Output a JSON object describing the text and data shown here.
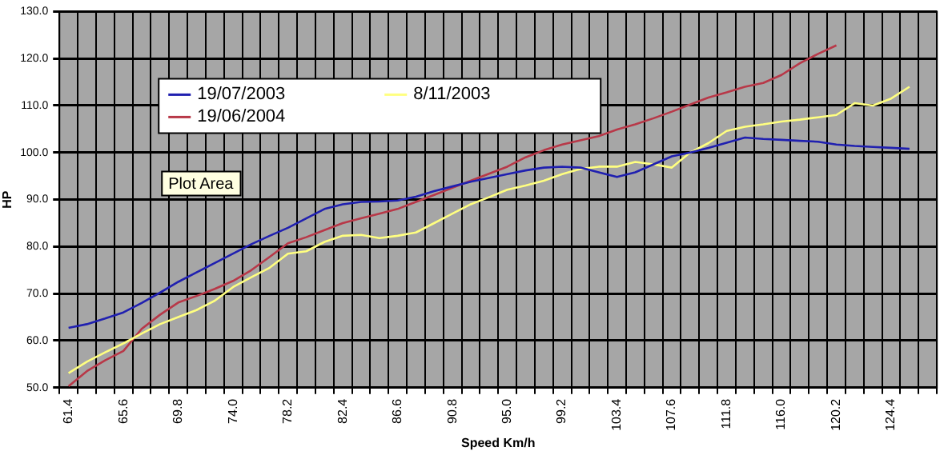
{
  "chart_data": {
    "type": "line",
    "xlabel": "Speed Km/h",
    "ylabel": "HP",
    "categories": [
      "61.4",
      null,
      null,
      "65.6",
      null,
      null,
      "69.8",
      null,
      null,
      "74.0",
      null,
      null,
      "78.2",
      null,
      null,
      "82.4",
      null,
      null,
      "86.6",
      null,
      null,
      "90.8",
      null,
      null,
      "95.0",
      null,
      null,
      "99.2",
      null,
      null,
      "103.4",
      null,
      null,
      "107.6",
      null,
      null,
      "111.8",
      null,
      null,
      "116.0",
      null,
      null,
      "120.2",
      null,
      null,
      "124.4",
      null,
      null
    ],
    "series": [
      {
        "name": "19/07/2003",
        "color": "#2020b0",
        "values": [
          62.7,
          63.5,
          64.7,
          66.0,
          68.0,
          70.2,
          72.5,
          74.5,
          76.5,
          78.5,
          80.5,
          82.3,
          84.0,
          86.0,
          88.0,
          89.0,
          89.5,
          89.6,
          89.8,
          90.6,
          91.8,
          92.8,
          93.8,
          94.6,
          95.4,
          96.2,
          96.8,
          97.0,
          96.8,
          95.8,
          94.8,
          95.8,
          97.5,
          99.2,
          100.0,
          101.0,
          102.1,
          103.2,
          102.9,
          102.7,
          102.5,
          102.3,
          101.7,
          101.4,
          101.2,
          101.0,
          100.8,
          null
        ]
      },
      {
        "name": "8/11/2003",
        "color": "#ffff80",
        "values": [
          53.1,
          55.5,
          57.5,
          59.4,
          61.5,
          63.5,
          65.0,
          66.5,
          68.5,
          71.4,
          73.5,
          75.5,
          78.5,
          79.0,
          81.0,
          82.3,
          82.5,
          81.8,
          82.3,
          83.0,
          85.0,
          87.0,
          89.0,
          90.5,
          92.1,
          93.0,
          94.0,
          95.4,
          96.5,
          97.0,
          97.0,
          98.0,
          97.5,
          96.8,
          100.0,
          102.0,
          104.6,
          105.5,
          106.0,
          106.6,
          107.0,
          107.5,
          108.0,
          110.5,
          110.0,
          111.5,
          114.0,
          null
        ]
      },
      {
        "name": "19/06/2004",
        "color": "#b83848",
        "values": [
          50.3,
          53.5,
          55.8,
          57.8,
          62.5,
          65.5,
          68.1,
          69.5,
          71.0,
          72.7,
          75.0,
          77.8,
          80.7,
          82.0,
          83.5,
          85.0,
          86.0,
          87.0,
          88.0,
          89.5,
          91.0,
          92.5,
          94.0,
          95.5,
          97.0,
          99.0,
          100.5,
          101.7,
          102.6,
          103.5,
          104.9,
          106.0,
          107.3,
          108.7,
          110.2,
          111.7,
          112.8,
          114.0,
          114.8,
          116.5,
          119.0,
          121.0,
          122.8,
          null,
          null,
          null,
          null,
          null
        ]
      }
    ],
    "ylim": [
      50,
      130
    ],
    "yticks": [
      {
        "value": 50,
        "label": "50.0"
      },
      {
        "value": 60,
        "label": "60.0"
      },
      {
        "value": 70,
        "label": "70.0"
      },
      {
        "value": 80,
        "label": "80.0"
      },
      {
        "value": 90,
        "label": "90.0"
      },
      {
        "value": 100,
        "label": "100.0"
      },
      {
        "value": 110,
        "label": "110.0"
      },
      {
        "value": 120,
        "label": "120.0"
      },
      {
        "value": 130,
        "label": "130.0"
      }
    ],
    "grid": true,
    "legend": "top left",
    "marker": "none",
    "line_style": "solid",
    "annotations": [
      "Plot Area"
    ]
  }
}
